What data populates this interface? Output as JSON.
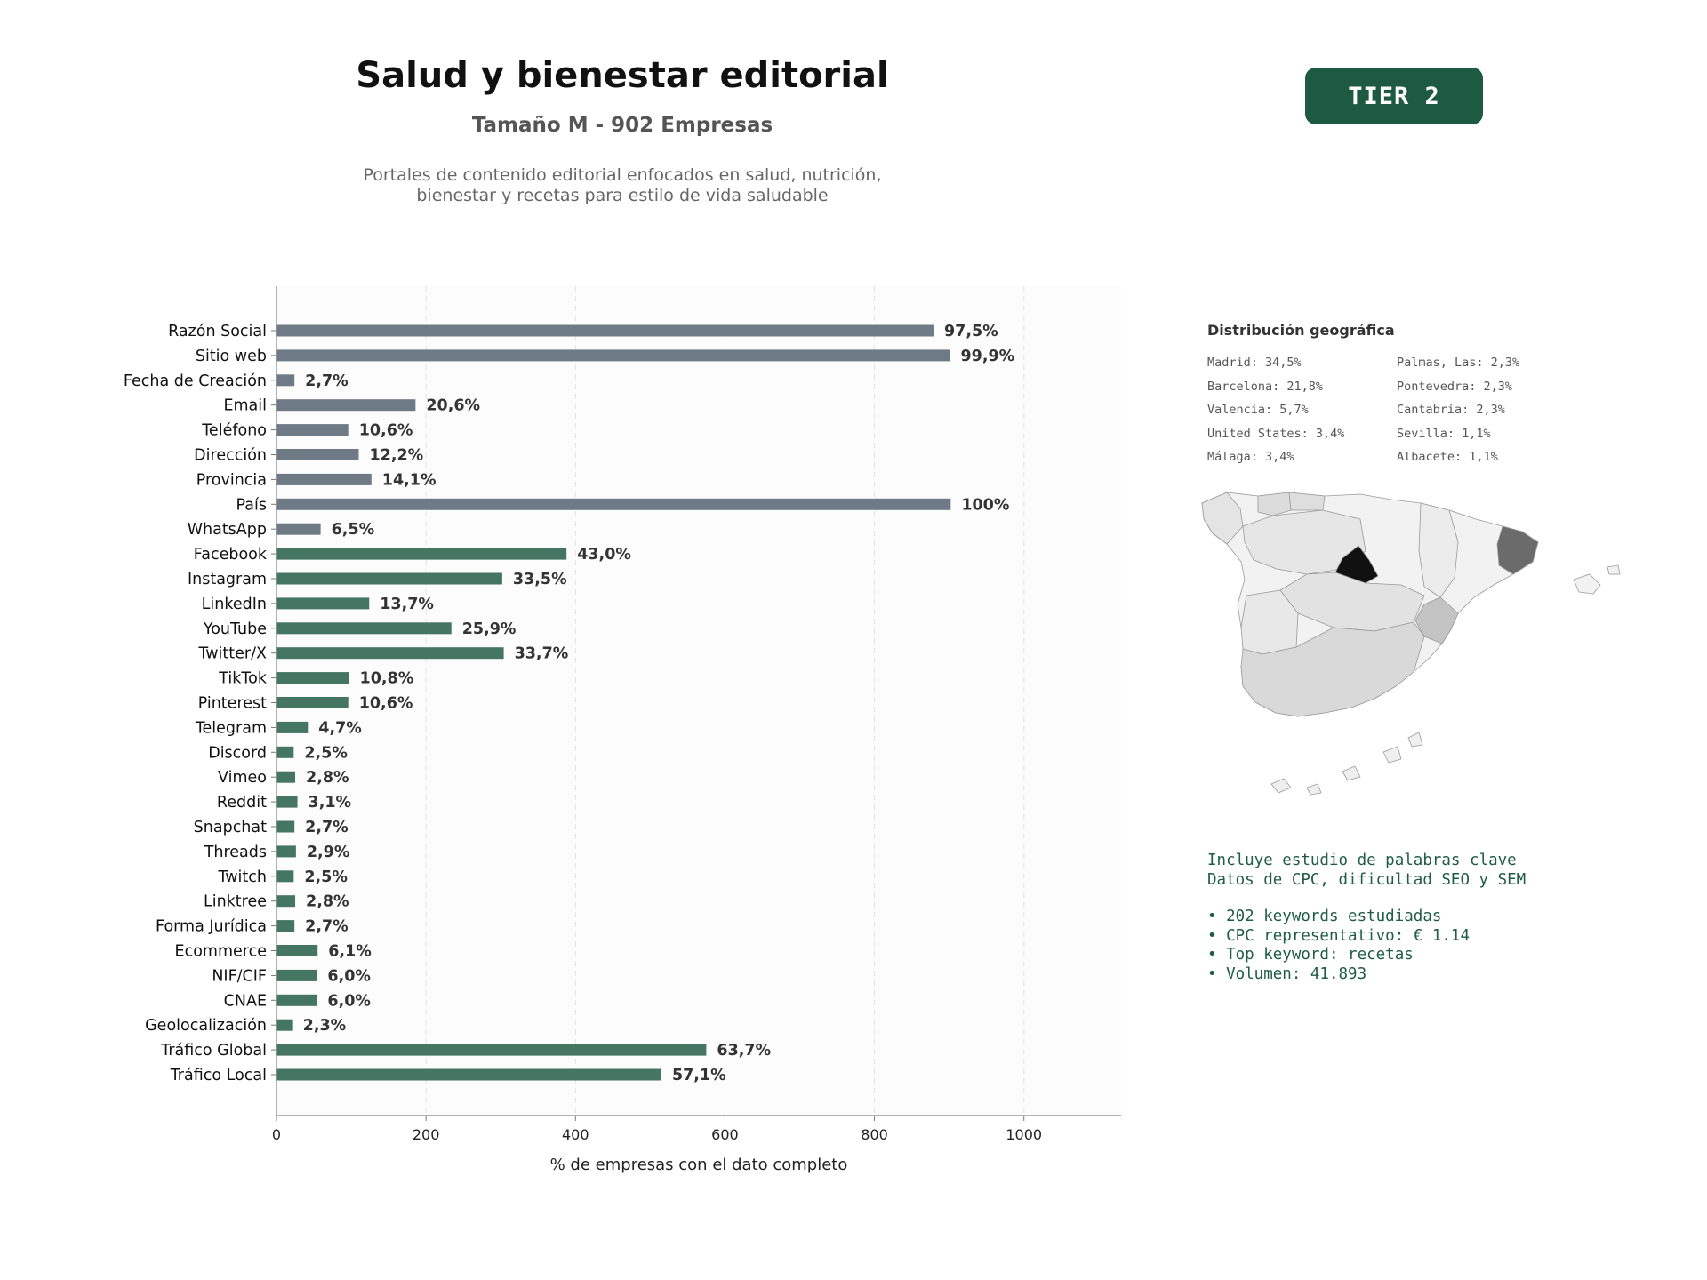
{
  "header": {
    "title": "Salud y bienestar editorial",
    "subtitle": "Tamaño M - 902 Empresas",
    "description_line1": "Portales de contenido editorial enfocados en salud, nutrición,",
    "description_line2": "bienestar y recetas para estilo de vida saludable",
    "tier_label": "TIER 2"
  },
  "colors": {
    "tier_badge": "#1e5942",
    "gray_bar": "#6e7b86",
    "green_bar": "#457563",
    "keywords_text": "#1f5c45"
  },
  "chart_data": {
    "type": "bar",
    "orientation": "horizontal",
    "xlabel": "% de empresas con el dato completo",
    "xlim": [
      0,
      1130
    ],
    "xticks": [
      0,
      200,
      400,
      600,
      800,
      1000
    ],
    "grid": "vertical dashed",
    "categories": [
      "Razón Social",
      "Sitio web",
      "Fecha de Creación",
      "Email",
      "Teléfono",
      "Dirección",
      "Provincia",
      "País",
      "WhatsApp",
      "Facebook",
      "Instagram",
      "LinkedIn",
      "YouTube",
      "Twitter/X",
      "TikTok",
      "Pinterest",
      "Telegram",
      "Discord",
      "Vimeo",
      "Reddit",
      "Snapchat",
      "Threads",
      "Twitch",
      "Linktree",
      "Forma Jurídica",
      "Ecommerce",
      "NIF/CIF",
      "CNAE",
      "Geolocalización",
      "Tráfico Global",
      "Tráfico Local"
    ],
    "values": [
      879,
      901,
      24,
      186,
      96,
      110,
      127,
      902,
      59,
      388,
      302,
      124,
      234,
      304,
      97,
      96,
      42,
      23,
      25,
      28,
      24,
      26,
      23,
      25,
      24,
      55,
      54,
      54,
      21,
      575,
      515
    ],
    "labels": [
      "97,5%",
      "99,9%",
      "2,7%",
      "20,6%",
      "10,6%",
      "12,2%",
      "14,1%",
      "100%",
      "6,5%",
      "43,0%",
      "33,5%",
      "13,7%",
      "25,9%",
      "33,7%",
      "10,8%",
      "10,6%",
      "4,7%",
      "2,5%",
      "2,8%",
      "3,1%",
      "2,7%",
      "2,9%",
      "2,5%",
      "2,8%",
      "2,7%",
      "6,1%",
      "6,0%",
      "6,0%",
      "2,3%",
      "63,7%",
      "57,1%"
    ],
    "bar_color_groups": {
      "gray_first_n": 9
    }
  },
  "geo": {
    "title": "Distribución geográfica",
    "items": [
      "Madrid: 34,5%",
      "Palmas, Las: 2,3%",
      "Barcelona: 21,8%",
      "Pontevedra: 2,3%",
      "Valencia: 5,7%",
      "Cantabria: 2,3%",
      "United States: 3,4%",
      "Sevilla: 1,1%",
      "Málaga: 3,4%",
      "Albacete: 1,1%"
    ]
  },
  "keywords": {
    "line1": "Incluye estudio de palabras clave",
    "line2": "Datos de CPC, dificultad SEO y SEM",
    "bullets": [
      "• 202 keywords estudiadas",
      "• CPC representativo: € 1.14",
      "• Top keyword: recetas",
      "• Volumen: 41.893"
    ]
  }
}
